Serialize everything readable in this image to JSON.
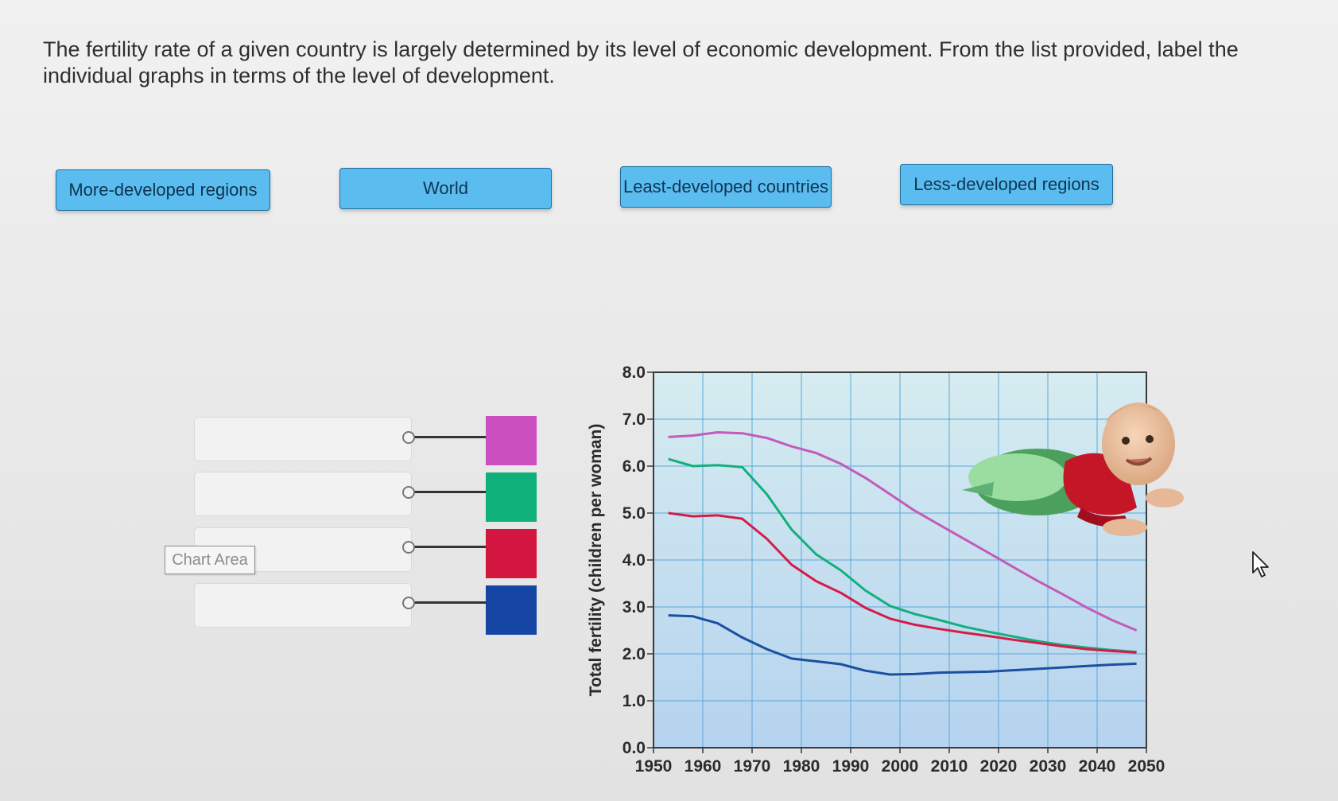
{
  "question": {
    "text": "The fertility rate of a given country is largely determined by its level of economic development. From the list provided, label the individual graphs in terms of the level of development."
  },
  "labels": [
    {
      "text": "More-developed regions"
    },
    {
      "text": "World"
    },
    {
      "text": "Least-developed countries"
    },
    {
      "text": "Less-developed regions"
    }
  ],
  "drop_targets": [
    {
      "value": "",
      "swatch_color": "#cc4fbf"
    },
    {
      "value": "",
      "swatch_color": "#0fb07a"
    },
    {
      "value": "",
      "swatch_color": "#d3163f"
    },
    {
      "value": "",
      "swatch_color": "#1546a3"
    }
  ],
  "chart_area_label": "Chart Area",
  "chart_data": {
    "type": "line",
    "xlabel": "",
    "ylabel": "Total fertility (children per woman)",
    "xlim": [
      1950,
      2050
    ],
    "ylim": [
      0,
      8
    ],
    "x_ticks": [
      1950,
      1960,
      1970,
      1980,
      1990,
      2000,
      2010,
      2020,
      2030,
      2040,
      2050
    ],
    "y_ticks": [
      "0.0",
      "1.0",
      "2.0",
      "3.0",
      "4.0",
      "5.0",
      "6.0",
      "7.0",
      "8.0"
    ],
    "grid": true,
    "series": [
      {
        "color": "#c25bb9",
        "x": [
          1953,
          1958,
          1963,
          1968,
          1973,
          1978,
          1983,
          1988,
          1993,
          1998,
          2003,
          2008,
          2013,
          2018,
          2023,
          2028,
          2033,
          2038,
          2043,
          2048
        ],
        "y": [
          6.62,
          6.65,
          6.72,
          6.7,
          6.6,
          6.42,
          6.28,
          6.05,
          5.75,
          5.4,
          5.05,
          4.75,
          4.45,
          4.15,
          3.85,
          3.55,
          3.27,
          2.98,
          2.72,
          2.5
        ]
      },
      {
        "color": "#12b07c",
        "x": [
          1953,
          1958,
          1963,
          1968,
          1973,
          1978,
          1983,
          1988,
          1993,
          1998,
          2003,
          2008,
          2013,
          2018,
          2023,
          2028,
          2033,
          2038,
          2043,
          2048
        ],
        "y": [
          6.15,
          6.0,
          6.02,
          5.98,
          5.4,
          4.65,
          4.12,
          3.78,
          3.35,
          3.02,
          2.85,
          2.72,
          2.58,
          2.47,
          2.37,
          2.27,
          2.19,
          2.13,
          2.08,
          2.04
        ]
      },
      {
        "color": "#d41c48",
        "x": [
          1953,
          1958,
          1963,
          1968,
          1973,
          1978,
          1983,
          1988,
          1993,
          1998,
          2003,
          2008,
          2013,
          2018,
          2023,
          2028,
          2033,
          2038,
          2043,
          2048
        ],
        "y": [
          5.0,
          4.93,
          4.95,
          4.88,
          4.45,
          3.9,
          3.55,
          3.3,
          2.98,
          2.75,
          2.62,
          2.53,
          2.45,
          2.38,
          2.3,
          2.23,
          2.16,
          2.1,
          2.06,
          2.03
        ]
      },
      {
        "color": "#1b4fa0",
        "x": [
          1953,
          1958,
          1963,
          1968,
          1973,
          1978,
          1983,
          1988,
          1993,
          1998,
          2003,
          2008,
          2013,
          2018,
          2023,
          2028,
          2033,
          2038,
          2043,
          2048
        ],
        "y": [
          2.82,
          2.8,
          2.65,
          2.35,
          2.1,
          1.9,
          1.84,
          1.78,
          1.64,
          1.56,
          1.57,
          1.6,
          1.61,
          1.62,
          1.65,
          1.68,
          1.71,
          1.74,
          1.77,
          1.79
        ]
      }
    ]
  }
}
